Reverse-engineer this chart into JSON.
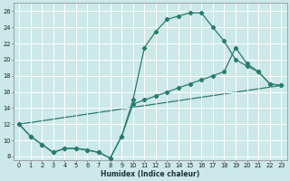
{
  "xlabel": "Humidex (Indice chaleur)",
  "xlim": [
    -0.5,
    23.5
  ],
  "ylim": [
    7.5,
    27.0
  ],
  "xticks": [
    0,
    1,
    2,
    3,
    4,
    5,
    6,
    7,
    8,
    9,
    10,
    11,
    12,
    13,
    14,
    15,
    16,
    17,
    18,
    19,
    20,
    21,
    22,
    23
  ],
  "yticks": [
    8,
    10,
    12,
    14,
    16,
    18,
    20,
    22,
    24,
    26
  ],
  "bg_color": "#cce8e8",
  "grid_color": "#ffffff",
  "line_color": "#2a7b6f",
  "line1_x": [
    0,
    1,
    2,
    3,
    4,
    5,
    6,
    7,
    8,
    9,
    10,
    11,
    12,
    13,
    14,
    15,
    16,
    17,
    18,
    19,
    20,
    21,
    22,
    23
  ],
  "line1_y": [
    12,
    10.5,
    9.5,
    8.5,
    9.0,
    9.0,
    8.8,
    8.5,
    7.8,
    10.5,
    15.0,
    21.5,
    23.5,
    25.0,
    25.4,
    25.8,
    25.8,
    24.0,
    22.3,
    20.0,
    19.2,
    18.5,
    17.0,
    16.8
  ],
  "line2_x": [
    0,
    1,
    2,
    3,
    4,
    5,
    6,
    7,
    8,
    9,
    10,
    11,
    12,
    13,
    14,
    15,
    16,
    17,
    18,
    19,
    20,
    21,
    22,
    23
  ],
  "line2_y": [
    12,
    10.5,
    9.5,
    8.5,
    9.0,
    9.0,
    8.8,
    8.5,
    7.8,
    10.5,
    14.5,
    15.0,
    15.5,
    16.0,
    16.5,
    17.0,
    17.5,
    18.0,
    18.5,
    21.5,
    19.5,
    18.5,
    17.0,
    16.8
  ],
  "line3_x": [
    0,
    23
  ],
  "line3_y": [
    12,
    16.8
  ]
}
